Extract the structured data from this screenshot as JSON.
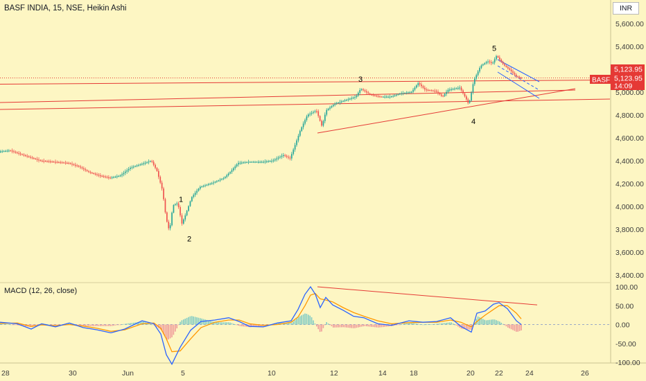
{
  "header": {
    "title": "BASF INDIA, 15, NSE, Heikin Ashi",
    "currency": "INR"
  },
  "price_badges": {
    "symbol": "BASF",
    "last_price": "5,123.95",
    "last_price_2": "5,123.95",
    "countdown": "14:09"
  },
  "macd_panel": {
    "title": "MACD (12, 26, close)"
  },
  "chart_data": [
    {
      "type": "candlestick",
      "title": "BASF INDIA, 15, NSE, Heikin Ashi",
      "x_ticks": [
        "28",
        "30",
        "Jun",
        "5",
        "10",
        "12",
        "14",
        "18",
        "20",
        "22",
        "24",
        "26"
      ],
      "y_ticks": [
        "5,600.00",
        "5,400.00",
        "5,200.00",
        "5,000.00",
        "4,800.00",
        "4,600.00",
        "4,400.00",
        "4,200.00",
        "4,000.00",
        "3,800.00",
        "3,600.00",
        "3,400.00"
      ],
      "ylim": [
        3400,
        5700
      ],
      "colors": {
        "up": "#26a69a",
        "down": "#ef5350",
        "trendline": "#e53935",
        "channel": "#2962ff"
      },
      "price_path": [
        [
          0,
          4480
        ],
        [
          16,
          4490
        ],
        [
          30,
          4460
        ],
        [
          45,
          4430
        ],
        [
          60,
          4400
        ],
        [
          80,
          4390
        ],
        [
          100,
          4380
        ],
        [
          115,
          4350
        ],
        [
          130,
          4300
        ],
        [
          145,
          4270
        ],
        [
          160,
          4250
        ],
        [
          175,
          4270
        ],
        [
          190,
          4340
        ],
        [
          205,
          4370
        ],
        [
          220,
          4400
        ],
        [
          228,
          4310
        ],
        [
          236,
          4140
        ],
        [
          241,
          3900
        ],
        [
          246,
          3780
        ],
        [
          251,
          4010
        ],
        [
          258,
          4030
        ],
        [
          264,
          3850
        ],
        [
          270,
          3940
        ],
        [
          278,
          4080
        ],
        [
          290,
          4170
        ],
        [
          310,
          4210
        ],
        [
          325,
          4250
        ],
        [
          335,
          4310
        ],
        [
          345,
          4380
        ],
        [
          360,
          4390
        ],
        [
          380,
          4390
        ],
        [
          395,
          4400
        ],
        [
          410,
          4450
        ],
        [
          420,
          4420
        ],
        [
          428,
          4550
        ],
        [
          435,
          4670
        ],
        [
          445,
          4800
        ],
        [
          458,
          4840
        ],
        [
          466,
          4700
        ],
        [
          472,
          4840
        ],
        [
          485,
          4900
        ],
        [
          500,
          4930
        ],
        [
          515,
          4960
        ],
        [
          522,
          5030
        ],
        [
          535,
          4980
        ],
        [
          550,
          4960
        ],
        [
          565,
          4960
        ],
        [
          580,
          4990
        ],
        [
          595,
          5000
        ],
        [
          605,
          5080
        ],
        [
          615,
          5020
        ],
        [
          630,
          5010
        ],
        [
          640,
          4960
        ],
        [
          648,
          5020
        ],
        [
          665,
          5040
        ],
        [
          675,
          4930
        ],
        [
          678,
          4890
        ],
        [
          685,
          5100
        ],
        [
          695,
          5230
        ],
        [
          705,
          5270
        ],
        [
          712,
          5250
        ],
        [
          718,
          5320
        ],
        [
          728,
          5240
        ],
        [
          738,
          5190
        ],
        [
          746,
          5140
        ],
        [
          752,
          5123.95
        ]
      ],
      "wave_labels": [
        {
          "label": "1",
          "price": 4040
        },
        {
          "label": "2",
          "price": 3780
        },
        {
          "label": "3",
          "price": 5080
        },
        {
          "label": "4",
          "price": 4830
        },
        {
          "label": "5",
          "price": 5360
        }
      ]
    },
    {
      "type": "line",
      "title": "MACD (12, 26, close)",
      "y_ticks": [
        "100.00",
        "50.00",
        "0.00",
        "-50.00",
        "-100.00"
      ],
      "ylim": [
        -105,
        105
      ],
      "x_ticks": [
        "28",
        "30",
        "Jun",
        "5",
        "10",
        "12",
        "14",
        "18",
        "20",
        "22",
        "24",
        "26"
      ],
      "series": [
        {
          "key": "macd",
          "color": "#2962ff",
          "values": [
            [
              0,
              6
            ],
            [
              25,
              2
            ],
            [
              45,
              -12
            ],
            [
              60,
              2
            ],
            [
              80,
              -6
            ],
            [
              100,
              4
            ],
            [
              120,
              -8
            ],
            [
              140,
              -14
            ],
            [
              160,
              -22
            ],
            [
              180,
              -12
            ],
            [
              205,
              10
            ],
            [
              222,
              2
            ],
            [
              232,
              -25
            ],
            [
              240,
              -80
            ],
            [
              248,
              -105
            ],
            [
              260,
              -60
            ],
            [
              275,
              -15
            ],
            [
              290,
              8
            ],
            [
              310,
              12
            ],
            [
              330,
              18
            ],
            [
              345,
              8
            ],
            [
              360,
              -5
            ],
            [
              380,
              -6
            ],
            [
              400,
              4
            ],
            [
              420,
              10
            ],
            [
              430,
              40
            ],
            [
              440,
              80
            ],
            [
              448,
              100
            ],
            [
              455,
              80
            ],
            [
              462,
              45
            ],
            [
              470,
              72
            ],
            [
              480,
              52
            ],
            [
              495,
              38
            ],
            [
              510,
              22
            ],
            [
              525,
              18
            ],
            [
              545,
              2
            ],
            [
              565,
              -2
            ],
            [
              590,
              10
            ],
            [
              610,
              6
            ],
            [
              630,
              8
            ],
            [
              650,
              18
            ],
            [
              665,
              -5
            ],
            [
              680,
              -20
            ],
            [
              688,
              30
            ],
            [
              700,
              36
            ],
            [
              712,
              54
            ],
            [
              720,
              58
            ],
            [
              732,
              42
            ],
            [
              745,
              10
            ],
            [
              752,
              0
            ]
          ]
        },
        {
          "key": "signal",
          "color": "#ff9800",
          "values": [
            [
              0,
              3
            ],
            [
              25,
              4
            ],
            [
              45,
              -5
            ],
            [
              60,
              -1
            ],
            [
              80,
              -3
            ],
            [
              100,
              0
            ],
            [
              120,
              -4
            ],
            [
              140,
              -10
            ],
            [
              160,
              -18
            ],
            [
              180,
              -14
            ],
            [
              205,
              2
            ],
            [
              222,
              4
            ],
            [
              232,
              -10
            ],
            [
              240,
              -38
            ],
            [
              248,
              -72
            ],
            [
              260,
              -70
            ],
            [
              275,
              -38
            ],
            [
              290,
              -8
            ],
            [
              310,
              6
            ],
            [
              330,
              12
            ],
            [
              345,
              12
            ],
            [
              360,
              2
            ],
            [
              380,
              -2
            ],
            [
              400,
              0
            ],
            [
              420,
              6
            ],
            [
              430,
              20
            ],
            [
              440,
              50
            ],
            [
              448,
              78
            ],
            [
              455,
              82
            ],
            [
              462,
              68
            ],
            [
              470,
              65
            ],
            [
              480,
              60
            ],
            [
              495,
              45
            ],
            [
              510,
              32
            ],
            [
              525,
              22
            ],
            [
              545,
              10
            ],
            [
              565,
              2
            ],
            [
              590,
              5
            ],
            [
              610,
              6
            ],
            [
              630,
              6
            ],
            [
              650,
              12
            ],
            [
              665,
              6
            ],
            [
              680,
              -6
            ],
            [
              688,
              8
            ],
            [
              700,
              25
            ],
            [
              712,
              40
            ],
            [
              720,
              50
            ],
            [
              732,
              50
            ],
            [
              745,
              30
            ],
            [
              752,
              15
            ]
          ]
        }
      ]
    }
  ]
}
